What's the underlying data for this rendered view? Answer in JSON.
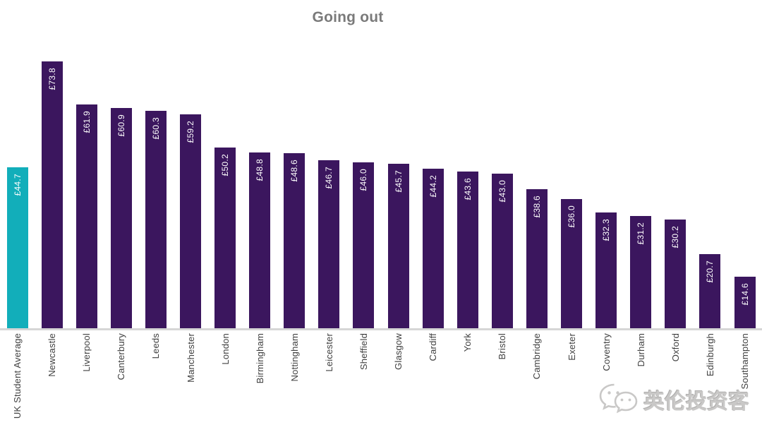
{
  "title": "Going out",
  "watermark": {
    "text": "英伦投资客",
    "icon": "wechat-icon"
  },
  "colors": {
    "bar": "#3B165E",
    "average_bar": "#12AEBA",
    "title_text": "#7A7A7A",
    "axis_line": "#D6D6D6",
    "value_label": "#FFFFFF",
    "category_label": "#404040"
  },
  "chart_data": {
    "type": "bar",
    "title": "Going out",
    "categories": [
      "UK Student Average",
      "Newcastle",
      "Liverpool",
      "Canterbury",
      "Leeds",
      "Manchester",
      "London",
      "Birmingham",
      "Nottingham",
      "Leicester",
      "Sheffield",
      "Glasgow",
      "Cardiff",
      "York",
      "Bristol",
      "Cambridge",
      "Exeter",
      "Coventry",
      "Durham",
      "Oxford",
      "Edinburgh",
      "Southampton"
    ],
    "values": [
      44.7,
      73.8,
      61.9,
      60.9,
      60.3,
      59.2,
      50.2,
      48.8,
      48.6,
      46.7,
      46.0,
      45.7,
      44.2,
      43.6,
      43.0,
      38.6,
      36.0,
      32.3,
      31.2,
      30.2,
      20.7,
      14.6
    ],
    "value_labels": [
      "£44.7",
      "£73.8",
      "£61.9",
      "£60.9",
      "£60.3",
      "£59.2",
      "£50.2",
      "£48.8",
      "£48.6",
      "£46.7",
      "£46.0",
      "£45.7",
      "£44.2",
      "£43.6",
      "£43.0",
      "£38.6",
      "£36.0",
      "£32.3",
      "£31.2",
      "£30.2",
      "£20.7",
      "£14.6"
    ],
    "highlighted_category": "UK Student Average",
    "xlabel": "",
    "ylabel": "",
    "ylim": [
      0,
      74
    ],
    "grid": false,
    "legend": false,
    "bar_label_position": "inside-top-rotated-90",
    "category_label_rotation": "90-bottom-to-top"
  }
}
